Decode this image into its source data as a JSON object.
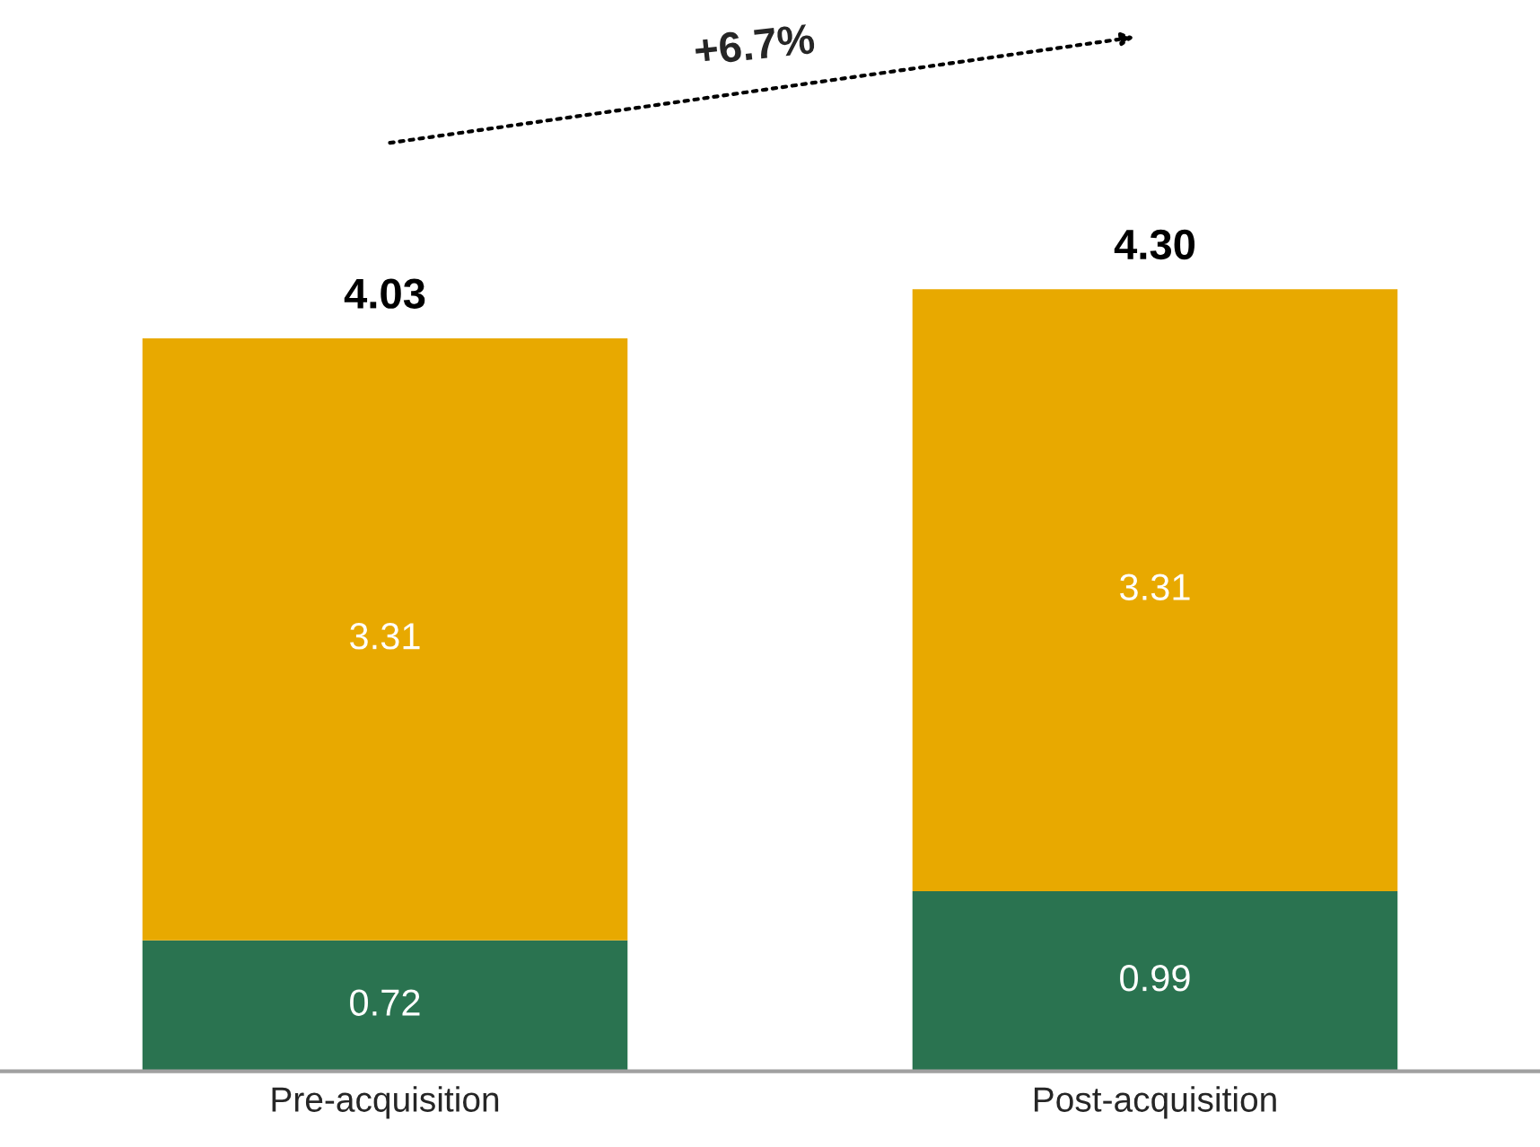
{
  "chart_data": {
    "type": "bar",
    "stacked": true,
    "data_labels": true,
    "categories": [
      "Pre-acquisition",
      "Post-acquisition"
    ],
    "series": [
      {
        "color": "#2a7350",
        "values": [
          0.72,
          0.99
        ]
      },
      {
        "color": "#e8a900",
        "values": [
          3.31,
          3.31
        ]
      }
    ],
    "totals": [
      "4.03",
      "4.30"
    ],
    "annotations": [
      "+6.7%"
    ]
  }
}
